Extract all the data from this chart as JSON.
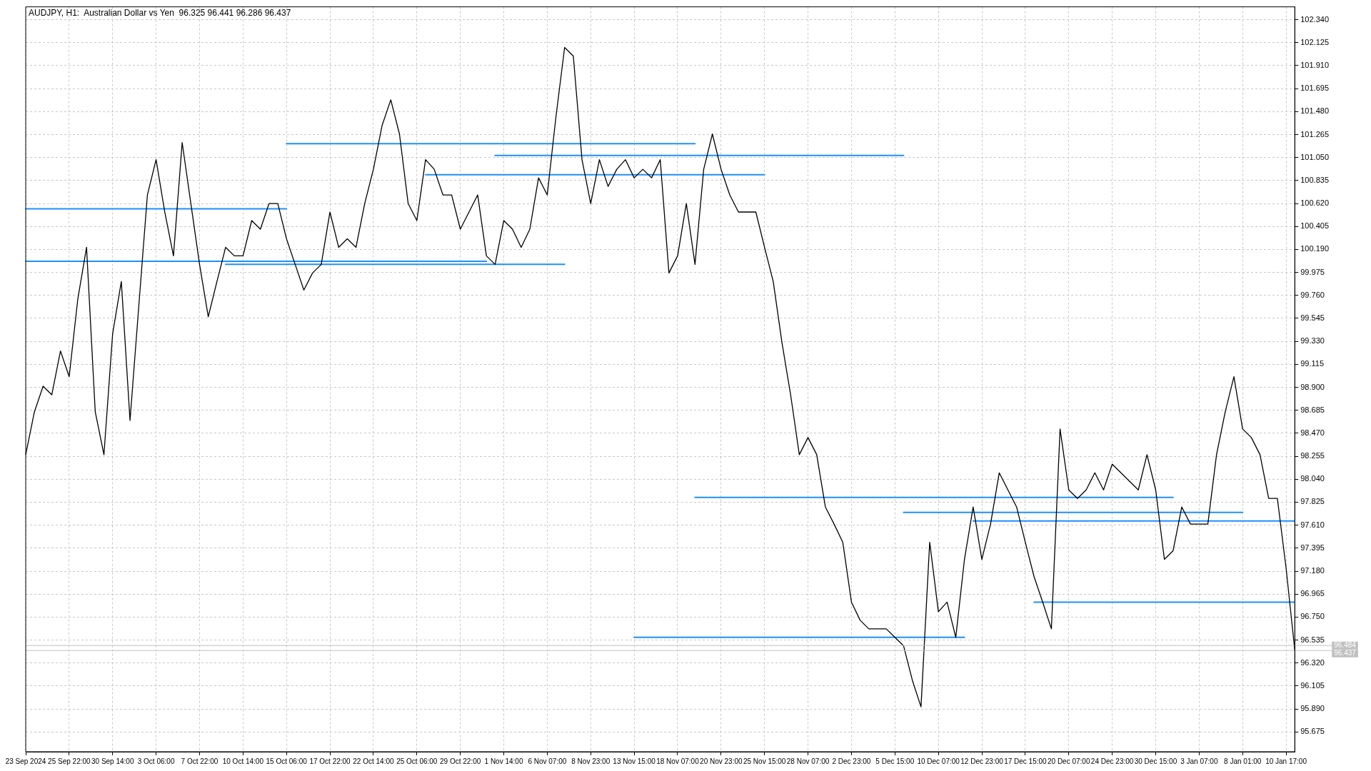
{
  "chart_data": {
    "type": "line",
    "title": "AUDJPY, H1:  Australian Dollar vs Yen  96.325 96.441 96.286 96.437",
    "categories": [
      "23 Sep 2024",
      null,
      null,
      null,
      null,
      "25 Sep 22:00",
      null,
      null,
      null,
      null,
      "30 Sep 14:00",
      null,
      null,
      null,
      null,
      "3 Oct 06:00",
      null,
      null,
      null,
      null,
      "7 Oct 22:00",
      null,
      null,
      null,
      null,
      "10 Oct 14:00",
      null,
      null,
      null,
      null,
      "15 Oct 06:00",
      null,
      null,
      null,
      null,
      "17 Oct 22:00",
      null,
      null,
      null,
      null,
      "22 Oct 14:00",
      null,
      null,
      null,
      null,
      "25 Oct 06:00",
      null,
      null,
      null,
      null,
      "29 Oct 22:00",
      null,
      null,
      null,
      null,
      "1 Nov 14:00",
      null,
      null,
      null,
      null,
      "6 Nov 07:00",
      null,
      null,
      null,
      null,
      "8 Nov 23:00",
      null,
      null,
      null,
      null,
      "13 Nov 15:00",
      null,
      null,
      null,
      null,
      "18 Nov 07:00",
      null,
      null,
      null,
      null,
      "20 Nov 23:00",
      null,
      null,
      null,
      null,
      "25 Nov 15:00",
      null,
      null,
      null,
      null,
      "28 Nov 07:00",
      null,
      null,
      null,
      null,
      "2 Dec 23:00",
      null,
      null,
      null,
      null,
      "5 Dec 15:00",
      null,
      null,
      null,
      null,
      "10 Dec 07:00",
      null,
      null,
      null,
      null,
      "12 Dec 23:00",
      null,
      null,
      null,
      null,
      "17 Dec 15:00",
      null,
      null,
      null,
      null,
      "20 Dec 07:00",
      null,
      null,
      null,
      null,
      "24 Dec 23:00",
      null,
      null,
      null,
      null,
      "30 Dec 15:00",
      null,
      null,
      null,
      null,
      "3 Jan 07:00",
      null,
      null,
      null,
      null,
      "8 Jan 01:00",
      null,
      null,
      null,
      null,
      "10 Jan 17:00",
      null
    ],
    "series": [
      {
        "color": "#000000",
        "values": [
          98.27,
          98.67,
          98.91,
          98.83,
          99.24,
          99.0,
          99.73,
          100.21,
          98.67,
          98.27,
          99.4,
          99.89,
          98.59,
          99.65,
          100.7,
          101.03,
          100.54,
          100.13,
          101.19,
          100.62,
          100.05,
          99.56,
          99.89,
          100.21,
          100.13,
          100.13,
          100.46,
          100.38,
          100.62,
          100.62,
          100.29,
          100.05,
          99.81,
          99.97,
          100.05,
          100.54,
          100.21,
          100.29,
          100.21,
          100.62,
          100.94,
          101.35,
          101.59,
          101.27,
          100.62,
          100.46,
          101.03,
          100.94,
          100.7,
          100.7,
          100.38,
          100.54,
          100.7,
          100.13,
          100.05,
          100.46,
          100.38,
          100.21,
          100.38,
          100.86,
          100.7,
          101.43,
          102.08,
          102.0,
          101.03,
          100.62,
          101.03,
          100.78,
          100.94,
          101.03,
          100.86,
          100.94,
          100.86,
          101.03,
          99.97,
          100.13,
          100.62,
          100.05,
          100.94,
          101.27,
          100.94,
          100.7,
          100.54,
          100.54,
          100.54,
          100.21,
          99.89,
          99.32,
          98.83,
          98.27,
          98.43,
          98.27,
          97.78,
          97.62,
          97.45,
          96.89,
          96.72,
          96.64,
          96.64,
          96.64,
          96.56,
          96.48,
          96.16,
          95.91,
          97.45,
          96.8,
          96.89,
          96.56,
          97.29,
          97.78,
          97.29,
          97.62,
          98.1,
          97.94,
          97.78,
          97.45,
          97.13,
          96.89,
          96.64,
          98.51,
          97.94,
          97.86,
          97.94,
          98.1,
          97.94,
          98.18,
          98.1,
          98.02,
          97.94,
          98.27,
          97.94,
          97.29,
          97.37,
          97.78,
          97.62,
          97.62,
          97.62,
          98.27,
          98.67,
          99.0,
          98.51,
          98.43,
          98.27,
          97.86,
          97.86,
          97.21,
          96.44
        ]
      },
      {
        "color": "#1e90ff",
        "values": [
          100.57,
          100.57,
          100.57,
          100.57,
          100.57,
          100.57,
          100.57,
          100.57,
          100.57,
          100.57,
          100.57,
          100.57,
          100.57,
          100.57,
          100.57,
          100.57,
          100.57,
          100.57,
          100.57,
          100.57,
          100.57,
          100.57,
          100.57,
          100.57,
          100.57,
          100.57,
          100.57,
          100.57,
          100.57,
          100.57,
          100.57,
          null,
          null,
          null,
          null,
          null,
          null,
          null,
          null,
          null,
          null,
          null,
          null,
          null,
          null,
          null,
          null,
          null,
          null,
          null,
          null,
          null,
          null,
          null,
          null,
          null,
          null,
          null,
          null,
          null,
          null,
          null,
          null,
          null,
          null,
          null,
          null,
          null,
          null,
          null,
          null,
          null,
          null,
          null,
          null,
          null,
          null,
          null,
          null,
          null,
          null,
          null,
          null,
          null,
          null,
          null,
          null,
          null,
          null,
          null,
          null,
          null,
          null,
          null,
          null,
          null,
          null,
          null,
          null,
          null,
          null,
          null,
          null,
          null,
          null,
          null,
          null,
          null,
          null,
          null,
          null,
          null,
          null,
          null,
          null,
          null,
          null,
          null,
          null,
          null,
          null,
          null,
          null,
          null,
          null,
          null,
          null,
          null,
          null,
          null,
          null,
          null,
          null,
          null,
          null,
          null,
          null,
          null,
          null,
          null,
          null,
          null,
          null,
          null,
          null,
          null,
          null
        ]
      },
      {
        "color": "#1e90ff",
        "values": [
          100.08,
          100.08,
          100.08,
          100.08,
          100.08,
          100.08,
          100.08,
          100.08,
          100.08,
          100.08,
          100.08,
          100.08,
          100.08,
          100.08,
          100.08,
          100.08,
          100.08,
          100.08,
          100.08,
          100.08,
          100.08,
          100.08,
          100.08,
          100.08,
          100.08,
          100.08,
          100.08,
          100.08,
          100.08,
          100.08,
          100.08,
          100.08,
          100.08,
          100.08,
          100.08,
          100.08,
          100.08,
          100.08,
          100.08,
          100.08,
          100.08,
          100.08,
          100.08,
          100.08,
          100.08,
          100.08,
          100.08,
          100.08,
          100.08,
          100.08,
          100.08,
          100.08,
          100.08,
          100.08,
          null,
          null,
          null,
          null,
          null,
          null,
          null,
          null,
          null,
          null,
          null,
          null,
          null,
          null,
          null,
          null,
          null,
          null,
          null,
          null,
          null,
          null,
          null,
          null,
          null,
          null,
          null,
          null,
          null,
          null,
          null,
          null,
          null,
          null,
          null,
          null,
          null,
          null,
          null,
          null,
          null,
          null,
          null,
          null,
          null,
          null,
          null,
          null,
          null,
          null,
          null,
          null,
          null,
          null,
          null,
          null,
          null,
          null,
          null,
          null,
          null,
          null,
          null,
          null,
          null,
          null,
          null,
          null,
          null,
          null,
          null,
          null,
          null,
          null,
          null,
          null,
          null,
          null,
          null,
          null,
          null,
          null,
          null,
          null,
          null,
          null,
          null,
          null,
          null,
          null,
          null,
          null,
          null
        ]
      },
      {
        "color": "#1e90ff",
        "values": [
          null,
          null,
          null,
          null,
          null,
          null,
          null,
          null,
          null,
          null,
          null,
          null,
          null,
          null,
          null,
          null,
          null,
          null,
          null,
          null,
          null,
          null,
          null,
          100.05,
          100.05,
          100.05,
          100.05,
          100.05,
          100.05,
          100.05,
          100.05,
          100.05,
          100.05,
          100.05,
          100.05,
          100.05,
          100.05,
          100.05,
          100.05,
          100.05,
          100.05,
          100.05,
          100.05,
          100.05,
          100.05,
          100.05,
          100.05,
          100.05,
          100.05,
          100.05,
          100.05,
          100.05,
          100.05,
          100.05,
          100.05,
          100.05,
          100.05,
          100.05,
          100.05,
          100.05,
          100.05,
          100.05,
          100.05,
          null,
          null,
          null,
          null,
          null,
          null,
          null,
          null,
          null,
          null,
          null,
          null,
          null,
          null,
          null,
          null,
          null,
          null,
          null,
          null,
          null,
          null,
          null,
          null,
          null,
          null,
          null,
          null,
          null,
          null,
          null,
          null,
          null,
          null,
          null,
          null,
          null,
          null,
          null,
          null,
          null,
          null,
          null,
          null,
          null,
          null,
          null,
          null,
          null,
          null,
          null,
          null,
          null,
          null,
          null,
          null,
          null,
          null,
          null,
          null,
          null,
          null,
          null,
          null,
          null,
          null,
          null,
          null,
          null,
          null,
          null,
          null,
          null,
          null,
          null,
          null,
          null,
          null,
          null,
          null,
          null,
          null,
          null,
          null
        ]
      },
      {
        "color": "#1e90ff",
        "values": [
          null,
          null,
          null,
          null,
          null,
          null,
          null,
          null,
          null,
          null,
          null,
          null,
          null,
          null,
          null,
          null,
          null,
          null,
          null,
          null,
          null,
          null,
          null,
          null,
          null,
          null,
          null,
          null,
          null,
          null,
          101.18,
          101.18,
          101.18,
          101.18,
          101.18,
          101.18,
          101.18,
          101.18,
          101.18,
          101.18,
          101.18,
          101.18,
          101.18,
          101.18,
          101.18,
          101.18,
          101.18,
          101.18,
          101.18,
          101.18,
          101.18,
          101.18,
          101.18,
          101.18,
          101.18,
          101.18,
          101.18,
          101.18,
          101.18,
          101.18,
          101.18,
          101.18,
          101.18,
          101.18,
          101.18,
          101.18,
          101.18,
          101.18,
          101.18,
          101.18,
          101.18,
          101.18,
          101.18,
          101.18,
          101.18,
          101.18,
          101.18,
          101.18,
          null,
          null,
          null,
          null,
          null,
          null,
          null,
          null,
          null,
          null,
          null,
          null,
          null,
          null,
          null,
          null,
          null,
          null,
          null,
          null,
          null,
          null,
          null,
          null,
          null,
          null,
          null,
          null,
          null,
          null,
          null,
          null,
          null,
          null,
          null,
          null,
          null,
          null,
          null,
          null,
          null,
          null,
          null,
          null,
          null,
          null,
          null,
          null,
          null,
          null,
          null,
          null,
          null,
          null,
          null,
          null,
          null,
          null,
          null,
          null,
          null,
          null,
          null,
          null,
          null,
          null,
          null,
          null,
          null
        ]
      },
      {
        "color": "#1e90ff",
        "values": [
          null,
          null,
          null,
          null,
          null,
          null,
          null,
          null,
          null,
          null,
          null,
          null,
          null,
          null,
          null,
          null,
          null,
          null,
          null,
          null,
          null,
          null,
          null,
          null,
          null,
          null,
          null,
          null,
          null,
          null,
          null,
          null,
          null,
          null,
          null,
          null,
          null,
          null,
          null,
          null,
          null,
          null,
          null,
          null,
          null,
          null,
          null,
          null,
          null,
          null,
          null,
          null,
          null,
          null,
          101.07,
          101.07,
          101.07,
          101.07,
          101.07,
          101.07,
          101.07,
          101.07,
          101.07,
          101.07,
          101.07,
          101.07,
          101.07,
          101.07,
          101.07,
          101.07,
          101.07,
          101.07,
          101.07,
          101.07,
          101.07,
          101.07,
          101.07,
          101.07,
          101.07,
          101.07,
          101.07,
          101.07,
          101.07,
          101.07,
          101.07,
          101.07,
          101.07,
          101.07,
          101.07,
          101.07,
          101.07,
          101.07,
          101.07,
          101.07,
          101.07,
          101.07,
          101.07,
          101.07,
          101.07,
          101.07,
          101.07,
          101.07,
          null,
          null,
          null,
          null,
          null,
          null,
          null,
          null,
          null,
          null,
          null,
          null,
          null,
          null,
          null,
          null,
          null,
          null,
          null,
          null,
          null,
          null,
          null,
          null,
          null,
          null,
          null,
          null,
          null,
          null,
          null,
          null,
          null,
          null,
          null,
          null,
          null,
          null,
          null,
          null,
          null,
          null,
          null,
          null,
          null
        ]
      },
      {
        "color": "#1e90ff",
        "values": [
          null,
          null,
          null,
          null,
          null,
          null,
          null,
          null,
          null,
          null,
          null,
          null,
          null,
          null,
          null,
          null,
          null,
          null,
          null,
          null,
          null,
          null,
          null,
          null,
          null,
          null,
          null,
          null,
          null,
          null,
          null,
          null,
          null,
          null,
          null,
          null,
          null,
          null,
          null,
          null,
          null,
          null,
          null,
          null,
          null,
          null,
          100.89,
          100.89,
          100.89,
          100.89,
          100.89,
          100.89,
          100.89,
          100.89,
          100.89,
          100.89,
          100.89,
          100.89,
          100.89,
          100.89,
          100.89,
          100.89,
          100.89,
          100.89,
          100.89,
          100.89,
          100.89,
          100.89,
          100.89,
          100.89,
          100.89,
          100.89,
          100.89,
          100.89,
          100.89,
          100.89,
          100.89,
          100.89,
          100.89,
          100.89,
          100.89,
          100.89,
          100.89,
          100.89,
          100.89,
          100.89,
          null,
          null,
          null,
          null,
          null,
          null,
          null,
          null,
          null,
          null,
          null,
          null,
          null,
          null,
          null,
          null,
          null,
          null,
          null,
          null,
          null,
          null,
          null,
          null,
          null,
          null,
          null,
          null,
          null,
          null,
          null,
          null,
          null,
          null,
          null,
          null,
          null,
          null,
          null,
          null,
          null,
          null,
          null,
          null,
          null,
          null,
          null,
          null,
          null,
          null,
          null,
          null,
          null,
          null,
          null,
          null,
          null,
          null,
          null,
          null,
          null
        ]
      },
      {
        "color": "#1e90ff",
        "values": [
          null,
          null,
          null,
          null,
          null,
          null,
          null,
          null,
          null,
          null,
          null,
          null,
          null,
          null,
          null,
          null,
          null,
          null,
          null,
          null,
          null,
          null,
          null,
          null,
          null,
          null,
          null,
          null,
          null,
          null,
          null,
          null,
          null,
          null,
          null,
          null,
          null,
          null,
          null,
          null,
          null,
          null,
          null,
          null,
          null,
          null,
          null,
          null,
          null,
          null,
          null,
          null,
          null,
          null,
          null,
          null,
          null,
          null,
          null,
          null,
          null,
          null,
          null,
          null,
          null,
          null,
          null,
          null,
          null,
          null,
          null,
          null,
          null,
          null,
          null,
          null,
          null,
          97.87,
          97.87,
          97.87,
          97.87,
          97.87,
          97.87,
          97.87,
          97.87,
          97.87,
          97.87,
          97.87,
          97.87,
          97.87,
          97.87,
          97.87,
          97.87,
          97.87,
          97.87,
          97.87,
          97.87,
          97.87,
          97.87,
          97.87,
          97.87,
          97.87,
          97.87,
          97.87,
          97.87,
          97.87,
          97.87,
          97.87,
          97.87,
          97.87,
          97.87,
          97.87,
          97.87,
          97.87,
          97.87,
          97.87,
          97.87,
          97.87,
          97.87,
          97.87,
          97.87,
          97.87,
          97.87,
          97.87,
          97.87,
          97.87,
          97.87,
          97.87,
          97.87,
          97.87,
          97.87,
          97.87,
          97.87,
          null,
          null,
          null,
          null,
          null,
          null,
          null,
          null,
          null,
          null,
          null,
          null,
          null,
          null
        ]
      },
      {
        "color": "#1e90ff",
        "values": [
          null,
          null,
          null,
          null,
          null,
          null,
          null,
          null,
          null,
          null,
          null,
          null,
          null,
          null,
          null,
          null,
          null,
          null,
          null,
          null,
          null,
          null,
          null,
          null,
          null,
          null,
          null,
          null,
          null,
          null,
          null,
          null,
          null,
          null,
          null,
          null,
          null,
          null,
          null,
          null,
          null,
          null,
          null,
          null,
          null,
          null,
          null,
          null,
          null,
          null,
          null,
          null,
          null,
          null,
          null,
          null,
          null,
          null,
          null,
          null,
          null,
          null,
          null,
          null,
          null,
          null,
          null,
          null,
          null,
          null,
          null,
          null,
          null,
          null,
          null,
          null,
          null,
          null,
          null,
          null,
          null,
          null,
          null,
          null,
          null,
          null,
          null,
          null,
          null,
          null,
          null,
          null,
          null,
          null,
          null,
          null,
          null,
          null,
          null,
          null,
          null,
          97.73,
          97.73,
          97.73,
          97.73,
          97.73,
          97.73,
          97.73,
          97.73,
          97.73,
          97.73,
          97.73,
          97.73,
          97.73,
          97.73,
          97.73,
          97.73,
          97.73,
          97.73,
          97.73,
          97.73,
          97.73,
          97.73,
          97.73,
          97.73,
          97.73,
          97.73,
          97.73,
          97.73,
          97.73,
          97.73,
          97.73,
          97.73,
          97.73,
          97.73,
          97.73,
          97.73,
          97.73,
          97.73,
          97.73,
          97.73,
          null,
          null,
          null,
          null,
          null,
          null
        ]
      },
      {
        "color": "#1e90ff",
        "values": [
          null,
          null,
          null,
          null,
          null,
          null,
          null,
          null,
          null,
          null,
          null,
          null,
          null,
          null,
          null,
          null,
          null,
          null,
          null,
          null,
          null,
          null,
          null,
          null,
          null,
          null,
          null,
          null,
          null,
          null,
          null,
          null,
          null,
          null,
          null,
          null,
          null,
          null,
          null,
          null,
          null,
          null,
          null,
          null,
          null,
          null,
          null,
          null,
          null,
          null,
          null,
          null,
          null,
          null,
          null,
          null,
          null,
          null,
          null,
          null,
          null,
          null,
          null,
          null,
          null,
          null,
          null,
          null,
          null,
          null,
          null,
          null,
          null,
          null,
          null,
          null,
          null,
          null,
          null,
          null,
          null,
          null,
          null,
          null,
          null,
          null,
          null,
          null,
          null,
          null,
          null,
          null,
          null,
          null,
          null,
          null,
          null,
          null,
          null,
          null,
          null,
          null,
          null,
          null,
          null,
          null,
          null,
          null,
          null,
          97.65,
          97.65,
          97.65,
          97.65,
          97.65,
          97.65,
          97.65,
          97.65,
          97.65,
          97.65,
          97.65,
          97.65,
          97.65,
          97.65,
          97.65,
          97.65,
          97.65,
          97.65,
          97.65,
          97.65,
          97.65,
          97.65,
          97.65,
          97.65,
          97.65,
          97.65,
          97.65,
          97.65,
          97.65,
          97.65,
          97.65,
          97.65,
          97.65,
          97.65,
          97.65,
          97.65,
          97.65,
          97.65
        ]
      },
      {
        "color": "#1e90ff",
        "values": [
          null,
          null,
          null,
          null,
          null,
          null,
          null,
          null,
          null,
          null,
          null,
          null,
          null,
          null,
          null,
          null,
          null,
          null,
          null,
          null,
          null,
          null,
          null,
          null,
          null,
          null,
          null,
          null,
          null,
          null,
          null,
          null,
          null,
          null,
          null,
          null,
          null,
          null,
          null,
          null,
          null,
          null,
          null,
          null,
          null,
          null,
          null,
          null,
          null,
          null,
          null,
          null,
          null,
          null,
          null,
          null,
          null,
          null,
          null,
          null,
          null,
          null,
          null,
          null,
          null,
          null,
          null,
          null,
          null,
          null,
          null,
          null,
          null,
          null,
          null,
          null,
          null,
          null,
          null,
          null,
          null,
          null,
          null,
          null,
          null,
          null,
          null,
          null,
          null,
          null,
          null,
          null,
          null,
          null,
          null,
          null,
          null,
          null,
          null,
          null,
          null,
          null,
          null,
          null,
          null,
          null,
          null,
          null,
          null,
          null,
          null,
          null,
          null,
          null,
          null,
          null,
          96.89,
          96.89,
          96.89,
          96.89,
          96.89,
          96.89,
          96.89,
          96.89,
          96.89,
          96.89,
          96.89,
          96.89,
          96.89,
          96.89,
          96.89,
          96.89,
          96.89,
          96.89,
          96.89,
          96.89,
          96.89,
          96.89,
          96.89,
          96.89,
          96.89,
          96.89,
          96.89,
          96.89,
          96.89,
          96.89,
          96.89
        ]
      },
      {
        "color": "#1e90ff",
        "values": [
          null,
          null,
          null,
          null,
          null,
          null,
          null,
          null,
          null,
          null,
          null,
          null,
          null,
          null,
          null,
          null,
          null,
          null,
          null,
          null,
          null,
          null,
          null,
          null,
          null,
          null,
          null,
          null,
          null,
          null,
          null,
          null,
          null,
          null,
          null,
          null,
          null,
          null,
          null,
          null,
          null,
          null,
          null,
          null,
          null,
          null,
          null,
          null,
          null,
          null,
          null,
          null,
          null,
          null,
          null,
          null,
          null,
          null,
          null,
          null,
          null,
          null,
          null,
          null,
          null,
          null,
          null,
          null,
          null,
          null,
          96.56,
          96.56,
          96.56,
          96.56,
          96.56,
          96.56,
          96.56,
          96.56,
          96.56,
          96.56,
          96.56,
          96.56,
          96.56,
          96.56,
          96.56,
          96.56,
          96.56,
          96.56,
          96.56,
          96.56,
          96.56,
          96.56,
          96.56,
          96.56,
          96.56,
          96.56,
          96.56,
          96.56,
          96.56,
          96.56,
          96.56,
          96.56,
          96.56,
          96.56,
          96.56,
          96.56,
          96.56,
          96.56,
          96.56,
          null,
          null,
          null,
          null,
          null,
          null,
          null,
          null,
          null,
          null,
          null,
          null,
          null,
          null,
          null,
          null,
          null,
          null,
          null,
          null,
          null,
          null,
          null,
          null,
          null,
          null,
          null,
          null,
          null,
          null,
          null,
          null,
          null,
          null,
          null,
          null,
          null,
          null
        ]
      }
    ],
    "ref_lines": [
      {
        "axis": "y",
        "value": 96.484,
        "label": "96.484",
        "color": "#c0c0c0"
      },
      {
        "axis": "y",
        "value": 96.437,
        "label": "96.437",
        "color": "#c0c0c0"
      }
    ],
    "ylim": [
      95.49,
      102.46
    ],
    "yticks": [
      95.675,
      {
        "value": 95.89,
        "label": "95.890"
      },
      96.105,
      {
        "value": 96.32,
        "label": "96.320"
      },
      96.535,
      {
        "value": 96.75,
        "label": "96.750"
      },
      96.965,
      {
        "value": 97.18,
        "label": "97.180"
      },
      97.395,
      {
        "value": 97.61,
        "label": "97.610"
      },
      97.825,
      {
        "value": 98.04,
        "label": "98.040"
      },
      98.255,
      {
        "value": 98.47,
        "label": "98.470"
      },
      98.685,
      {
        "value": 98.9,
        "label": "98.900"
      },
      99.115,
      {
        "value": 99.33,
        "label": "99.330"
      },
      99.545,
      {
        "value": 99.76,
        "label": "99.760"
      },
      99.975,
      {
        "value": 100.19,
        "label": "100.190"
      },
      100.405,
      {
        "value": 100.62,
        "label": "100.620"
      },
      100.835,
      {
        "value": 101.05,
        "label": "101.050"
      },
      101.265,
      {
        "value": 101.48,
        "label": "101.480"
      },
      101.695,
      {
        "value": 101.91,
        "label": "101.910"
      },
      102.125,
      {
        "value": 102.34,
        "label": "102.340"
      }
    ],
    "grid": true,
    "legend": false,
    "marker": "none",
    "line_style": "solid"
  }
}
